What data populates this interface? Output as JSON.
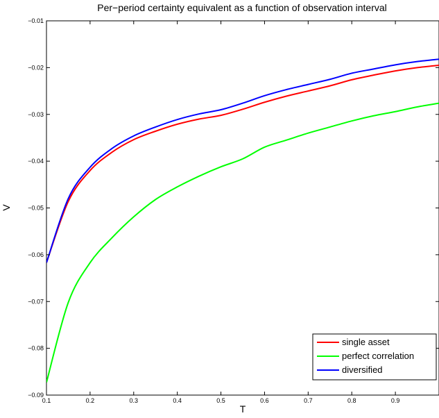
{
  "chart_data": {
    "type": "line",
    "title": "Per−period certainty equivalent as a function of observation interval",
    "xlabel": "T",
    "ylabel": "V",
    "xlim": [
      0.1,
      1.0
    ],
    "ylim": [
      -0.09,
      -0.01
    ],
    "xticks": [
      0.1,
      0.2,
      0.3,
      0.4,
      0.5,
      0.6,
      0.7,
      0.8,
      0.9
    ],
    "xtick_labels": [
      "0.1",
      "0.2",
      "0.3",
      "0.4",
      "0.5",
      "0.6",
      "0.7",
      "0.8",
      "0.9"
    ],
    "yticks": [
      -0.09,
      -0.08,
      -0.07,
      -0.06,
      -0.05,
      -0.04,
      -0.03,
      -0.02,
      -0.01
    ],
    "ytick_labels": [
      "−0.09",
      "−0.08",
      "−0.07",
      "−0.06",
      "−0.05",
      "−0.04",
      "−0.03",
      "−0.02",
      "−0.01"
    ],
    "grid": false,
    "legend_position": "bottom-right",
    "x": [
      0.1,
      0.15,
      0.2,
      0.25,
      0.3,
      0.35,
      0.4,
      0.45,
      0.5,
      0.55,
      0.6,
      0.65,
      0.7,
      0.75,
      0.8,
      0.85,
      0.9,
      0.95,
      1.0
    ],
    "series": [
      {
        "name": "single asset",
        "color": "#ff0000",
        "values": [
          -0.0617,
          -0.0486,
          -0.042,
          -0.0381,
          -0.0354,
          -0.0336,
          -0.0321,
          -0.031,
          -0.0302,
          -0.0289,
          -0.0274,
          -0.0261,
          -0.025,
          -0.0239,
          -0.0226,
          -0.0216,
          -0.0207,
          -0.02,
          -0.0195
        ]
      },
      {
        "name": "perfect correlation",
        "color": "#00ff00",
        "values": [
          -0.0873,
          -0.0702,
          -0.0617,
          -0.0564,
          -0.0519,
          -0.0482,
          -0.0455,
          -0.0432,
          -0.0412,
          -0.0395,
          -0.037,
          -0.0355,
          -0.034,
          -0.0327,
          -0.0314,
          -0.0303,
          -0.0294,
          -0.0284,
          -0.0276
        ]
      },
      {
        "name": "diversified",
        "color": "#0000ff",
        "values": [
          -0.0617,
          -0.048,
          -0.0413,
          -0.0373,
          -0.0346,
          -0.0327,
          -0.0311,
          -0.0299,
          -0.029,
          -0.0276,
          -0.026,
          -0.0247,
          -0.0236,
          -0.0225,
          -0.0212,
          -0.0203,
          -0.0194,
          -0.0187,
          -0.0182
        ]
      }
    ]
  }
}
